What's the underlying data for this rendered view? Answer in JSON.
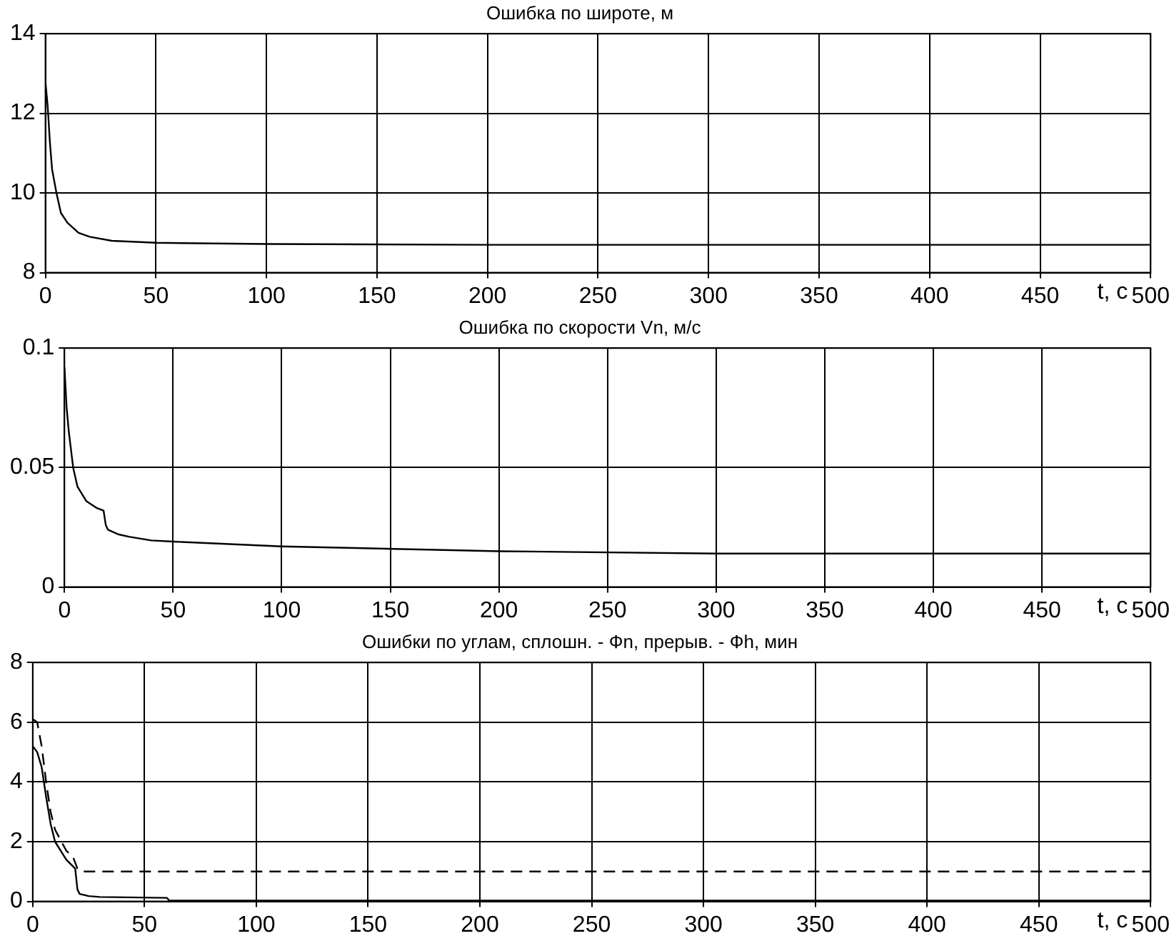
{
  "chart_data": [
    {
      "type": "line",
      "title": "Ошибка по широте, м",
      "xlabel": "t, c",
      "x": [
        0,
        1,
        2,
        3,
        5,
        7,
        10,
        15,
        20,
        30,
        50,
        100,
        200,
        500
      ],
      "series": [
        {
          "color": "#000000",
          "line_style": "solid",
          "values": [
            12.8,
            12.2,
            11.3,
            10.6,
            10.0,
            9.5,
            9.25,
            9.0,
            8.9,
            8.8,
            8.75,
            8.72,
            8.7,
            8.7
          ]
        }
      ],
      "xlim": [
        0,
        500
      ],
      "xticks": [
        0,
        50,
        100,
        150,
        200,
        250,
        300,
        350,
        400,
        450,
        500
      ],
      "ylim": [
        8,
        14
      ],
      "yticks": [
        8,
        10,
        12,
        14
      ],
      "grid": true
    },
    {
      "type": "line",
      "title": "Ошибка по скорости Vn, м/с",
      "xlabel": "t, c",
      "x": [
        0,
        1,
        2,
        4,
        6,
        10,
        15,
        18,
        19,
        20,
        25,
        30,
        40,
        50,
        100,
        200,
        300,
        500
      ],
      "series": [
        {
          "color": "#000000",
          "line_style": "solid",
          "values": [
            0.092,
            0.075,
            0.065,
            0.05,
            0.042,
            0.036,
            0.033,
            0.032,
            0.026,
            0.024,
            0.022,
            0.021,
            0.0195,
            0.019,
            0.017,
            0.015,
            0.014,
            0.014
          ]
        }
      ],
      "xlim": [
        0,
        500
      ],
      "xticks": [
        0,
        50,
        100,
        150,
        200,
        250,
        300,
        350,
        400,
        450,
        500
      ],
      "ylim": [
        0,
        0.1
      ],
      "yticks": [
        0,
        0.05,
        0.1
      ],
      "grid": true
    },
    {
      "type": "line",
      "title": "Ошибки по углам, сплошн. - Фn, прерыв. - Фh, мин",
      "xlabel": "t, c",
      "x": [
        0,
        2,
        4,
        6,
        8,
        10,
        15,
        19,
        20,
        21,
        25,
        30,
        60,
        61,
        500
      ],
      "series": [
        {
          "color": "#000000",
          "line_style": "solid",
          "values": [
            5.2,
            5.0,
            4.5,
            3.5,
            2.6,
            2.0,
            1.4,
            1.1,
            0.4,
            0.25,
            0.18,
            0.15,
            0.12,
            0.03,
            0.03
          ]
        },
        {
          "color": "#000000",
          "line_style": "dashed",
          "x": [
            0,
            2,
            4,
            6,
            8,
            10,
            15,
            18,
            20,
            22,
            500
          ],
          "values": [
            6.1,
            6.0,
            5.2,
            4.0,
            3.0,
            2.4,
            1.7,
            1.5,
            1.1,
            1.0,
            1.0
          ]
        }
      ],
      "xlim": [
        0,
        500
      ],
      "xticks": [
        0,
        50,
        100,
        150,
        200,
        250,
        300,
        350,
        400,
        450,
        500
      ],
      "ylim": [
        0,
        8
      ],
      "yticks": [
        0,
        2,
        4,
        6,
        8
      ],
      "grid": true
    }
  ]
}
